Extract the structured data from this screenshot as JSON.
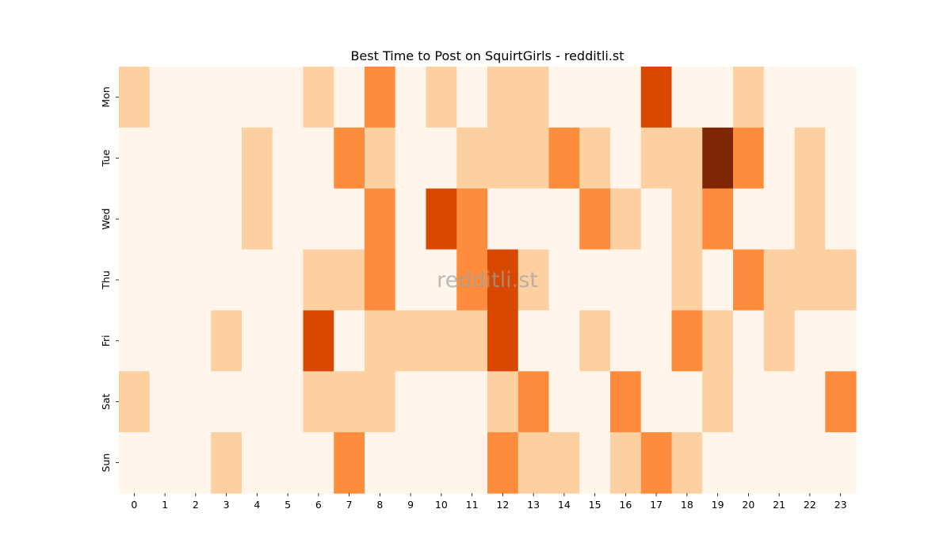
{
  "chart_data": {
    "type": "heatmap",
    "title": "Best Time to Post on SquirtGirls - redditli.st",
    "watermark": "redditli.st",
    "rows": [
      "Mon",
      "Tue",
      "Wed",
      "Thu",
      "Fri",
      "Sat",
      "Sun"
    ],
    "columns": [
      "0",
      "1",
      "2",
      "3",
      "4",
      "5",
      "6",
      "7",
      "8",
      "9",
      "10",
      "11",
      "12",
      "13",
      "14",
      "15",
      "16",
      "17",
      "18",
      "19",
      "20",
      "21",
      "22",
      "23"
    ],
    "colormap": "Oranges",
    "value_range": [
      0,
      4
    ],
    "colors": [
      "#fff5eb",
      "#fdd0a2",
      "#fd8d3c",
      "#d94801",
      "#7f2704"
    ],
    "values": [
      [
        1,
        0,
        0,
        0,
        0,
        0,
        1,
        0,
        2,
        0,
        1,
        0,
        1,
        1,
        0,
        0,
        0,
        3,
        0,
        0,
        1,
        0,
        0,
        0
      ],
      [
        0,
        0,
        0,
        0,
        1,
        0,
        0,
        2,
        1,
        0,
        0,
        1,
        1,
        1,
        2,
        1,
        0,
        1,
        1,
        4,
        2,
        0,
        1,
        0
      ],
      [
        0,
        0,
        0,
        0,
        1,
        0,
        0,
        0,
        2,
        0,
        3,
        2,
        0,
        0,
        0,
        2,
        1,
        0,
        1,
        2,
        0,
        0,
        1,
        0
      ],
      [
        0,
        0,
        0,
        0,
        0,
        0,
        1,
        1,
        2,
        0,
        0,
        2,
        3,
        1,
        0,
        0,
        0,
        0,
        1,
        0,
        2,
        1,
        1,
        1
      ],
      [
        0,
        0,
        0,
        1,
        0,
        0,
        3,
        0,
        1,
        1,
        1,
        1,
        3,
        0,
        0,
        1,
        0,
        0,
        2,
        1,
        0,
        1,
        0,
        0
      ],
      [
        1,
        0,
        0,
        0,
        0,
        0,
        1,
        1,
        1,
        0,
        0,
        0,
        1,
        2,
        0,
        0,
        2,
        0,
        0,
        1,
        0,
        0,
        0,
        2
      ],
      [
        0,
        0,
        0,
        1,
        0,
        0,
        0,
        2,
        0,
        0,
        0,
        0,
        2,
        1,
        1,
        0,
        1,
        2,
        1,
        0,
        0,
        0,
        0,
        0
      ]
    ]
  }
}
